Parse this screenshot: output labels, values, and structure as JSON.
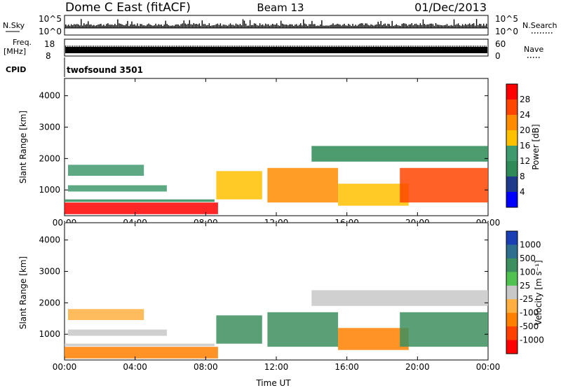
{
  "header": {
    "station": "Dome C East (fitACF)",
    "beam": "Beam 13",
    "date": "01/Dec/2013"
  },
  "strips": {
    "nsky_label": "N.Sky",
    "nsky_top": "10^5",
    "nsky_bottom": "10^0",
    "nsearch_label": "N.Search",
    "freq_label": "Freq.",
    "freq_unit": "[MHz]",
    "freq_top": "18",
    "freq_bottom": "8",
    "nave_top": "60",
    "nave_bottom": "0",
    "nave_label": "Nave",
    "cpid_label": "CPID",
    "cpid_value": "twofsound 3501"
  },
  "chart_data": [
    {
      "type": "heatmap",
      "panel": "power",
      "ylabel": "Slant Range [km]",
      "xlabel": "",
      "xlim": [
        "00:00",
        "24:00"
      ],
      "ylim": [
        180,
        4550
      ],
      "x_ticks": [
        "00:00",
        "04:00",
        "08:00",
        "12:00",
        "16:00",
        "20:00",
        "00:00"
      ],
      "y_ticks": [
        1000,
        2000,
        3000,
        4000
      ],
      "colorbar": {
        "label": "Power [dB]",
        "ticks": [
          "28",
          "24",
          "20",
          "16",
          "12",
          "8",
          "4"
        ],
        "colors": [
          "#ff0000",
          "#ff4500",
          "#ff8c00",
          "#ffc000",
          "#3f9a6e",
          "#2e8b57",
          "#1e3a8a",
          "#0000ff"
        ]
      },
      "series": [
        {
          "start_hr": 0.0,
          "end_hr": 8.7,
          "range_lo": 230,
          "range_hi": 600,
          "value": 27
        },
        {
          "start_hr": 0.0,
          "end_hr": 8.5,
          "range_lo": 620,
          "range_hi": 700,
          "value": 8
        },
        {
          "start_hr": 0.2,
          "end_hr": 5.8,
          "range_lo": 950,
          "range_hi": 1150,
          "value": 11
        },
        {
          "start_hr": 0.2,
          "end_hr": 4.5,
          "range_lo": 1450,
          "range_hi": 1800,
          "value": 9
        },
        {
          "start_hr": 8.6,
          "end_hr": 11.2,
          "range_lo": 700,
          "range_hi": 1600,
          "value": 14
        },
        {
          "start_hr": 11.5,
          "end_hr": 15.5,
          "range_lo": 600,
          "range_hi": 1700,
          "value": 19
        },
        {
          "start_hr": 15.5,
          "end_hr": 19.5,
          "range_lo": 500,
          "range_hi": 1200,
          "value": 13
        },
        {
          "start_hr": 19.0,
          "end_hr": 24.0,
          "range_lo": 600,
          "range_hi": 1700,
          "value": 21
        },
        {
          "start_hr": 14.0,
          "end_hr": 24.0,
          "range_lo": 1900,
          "range_hi": 2400,
          "value": 8
        }
      ]
    },
    {
      "type": "heatmap",
      "panel": "velocity",
      "ylabel": "Slant Range [km]",
      "xlabel": "Time UT",
      "xlim": [
        "00:00",
        "24:00"
      ],
      "ylim": [
        180,
        4550
      ],
      "x_ticks": [
        "00:00",
        "04:00",
        "08:00",
        "12:00",
        "16:00",
        "20:00",
        "00:00"
      ],
      "y_ticks": [
        1000,
        2000,
        3000,
        4000
      ],
      "colorbar": {
        "label": "Velocity [m s⁻¹]",
        "ticks": [
          "1000",
          "500",
          "100",
          "25",
          "-25",
          "-100",
          "-500",
          "-1000"
        ],
        "colors": [
          "#1a3fb5",
          "#2e6f8f",
          "#3d8f5f",
          "#4fc24f",
          "#c8c8c8",
          "#ffb040",
          "#ff8000",
          "#ff4000",
          "#ff0000"
        ]
      },
      "series": [
        {
          "start_hr": 0.0,
          "end_hr": 8.7,
          "range_lo": 230,
          "range_hi": 600,
          "value": -150
        },
        {
          "start_hr": 0.0,
          "end_hr": 8.5,
          "range_lo": 620,
          "range_hi": 700,
          "value": 20
        },
        {
          "start_hr": 0.2,
          "end_hr": 5.8,
          "range_lo": 950,
          "range_hi": 1150,
          "value": 0
        },
        {
          "start_hr": 0.2,
          "end_hr": 4.5,
          "range_lo": 1450,
          "range_hi": 1800,
          "value": -80
        },
        {
          "start_hr": 8.6,
          "end_hr": 11.2,
          "range_lo": 700,
          "range_hi": 1600,
          "value": 150
        },
        {
          "start_hr": 11.5,
          "end_hr": 15.5,
          "range_lo": 600,
          "range_hi": 1700,
          "value": 200
        },
        {
          "start_hr": 15.5,
          "end_hr": 19.5,
          "range_lo": 500,
          "range_hi": 1200,
          "value": -300
        },
        {
          "start_hr": 19.0,
          "end_hr": 24.0,
          "range_lo": 600,
          "range_hi": 1700,
          "value": 120
        },
        {
          "start_hr": 14.0,
          "end_hr": 24.0,
          "range_lo": 1900,
          "range_hi": 2400,
          "value": 0
        }
      ]
    }
  ]
}
